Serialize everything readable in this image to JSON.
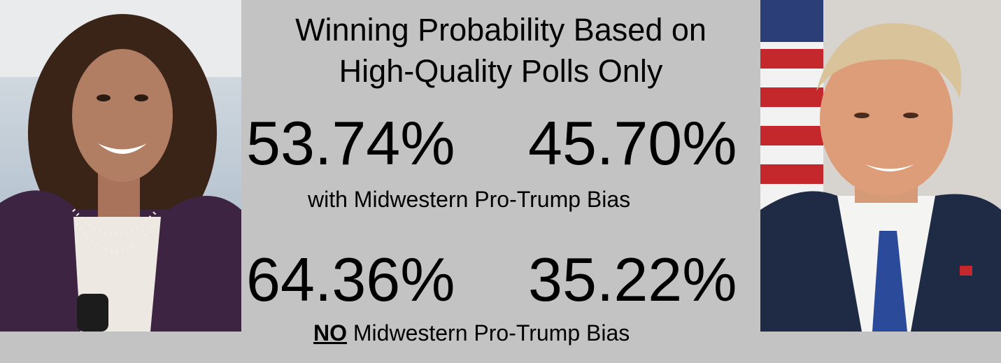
{
  "title": {
    "line1": "Winning Probability Based on",
    "line2": "High-Quality Polls Only"
  },
  "scenario_with_bias": {
    "harris_pct": "53.74%",
    "trump_pct": "45.70%",
    "caption": "with Midwestern Pro-Trump Bias"
  },
  "scenario_no_bias": {
    "harris_pct": "64.36%",
    "trump_pct": "35.22%",
    "caption_emphasis": "NO",
    "caption_rest": " Midwestern Pro-Trump Bias"
  },
  "colors": {
    "background": "#c3c3c3",
    "text": "#000000"
  }
}
